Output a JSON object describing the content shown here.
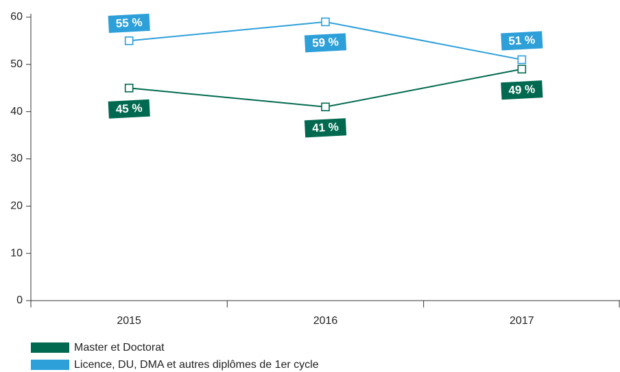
{
  "chart_data": {
    "type": "line",
    "categories": [
      "2015",
      "2016",
      "2017"
    ],
    "series": [
      {
        "name": "Master et Doctorat",
        "color": "#00694f",
        "values": [
          45,
          41,
          49
        ],
        "value_labels": [
          "45 %",
          "41 %",
          "49 %"
        ]
      },
      {
        "name": "Licence, DU, DMA et autres diplômes de 1er cycle",
        "color": "#2d9fd9",
        "values": [
          55,
          59,
          51
        ],
        "value_labels": [
          "55 %",
          "59 %",
          "51 %"
        ]
      }
    ],
    "ylim": [
      0,
      60
    ],
    "yticks": [
      0,
      10,
      20,
      30,
      40,
      50,
      60
    ],
    "grid": false
  }
}
